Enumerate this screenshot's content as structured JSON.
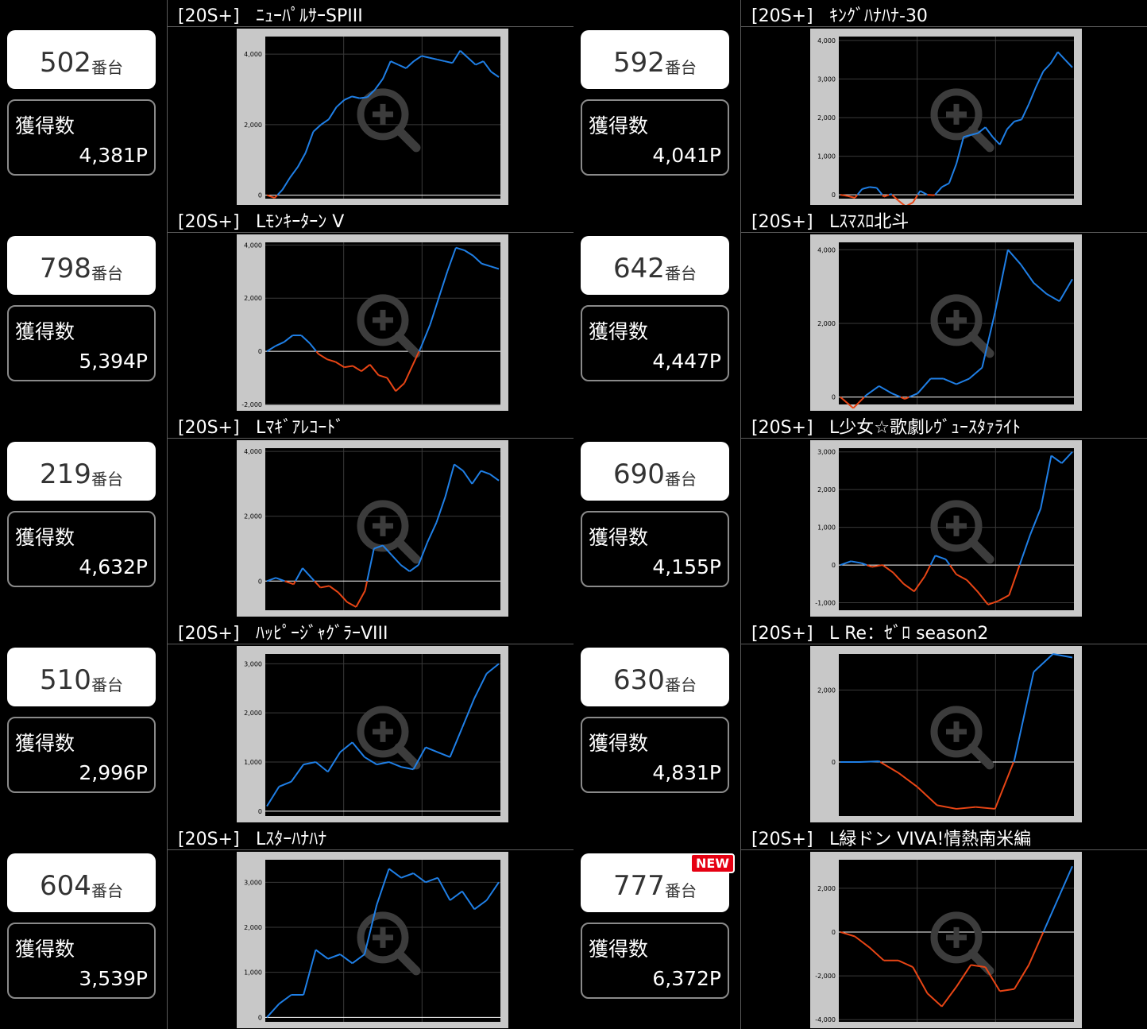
{
  "colors": {
    "positive": "#1f7fe6",
    "negative": "#e84515",
    "grid": "#3a3a3a",
    "zero": "#ffffff",
    "frame": "#c8c8c8"
  },
  "machines": [
    {
      "number": "502",
      "suffix": "番台",
      "gain_label": "獲得数",
      "gain_value": "4,381P",
      "tag": "[20S+]",
      "name": "ﾆｭｰﾊﾟﾙｻｰSPIII"
    },
    {
      "number": "592",
      "suffix": "番台",
      "gain_label": "獲得数",
      "gain_value": "4,041P",
      "tag": "[20S+]",
      "name": "ｷﾝｸﾞﾊﾅﾊﾅ-30"
    },
    {
      "number": "798",
      "suffix": "番台",
      "gain_label": "獲得数",
      "gain_value": "5,394P",
      "tag": "[20S+]",
      "name": "Lﾓﾝｷｰﾀｰﾝ V"
    },
    {
      "number": "642",
      "suffix": "番台",
      "gain_label": "獲得数",
      "gain_value": "4,447P",
      "tag": "[20S+]",
      "name": "Lｽﾏｽﾛ北斗"
    },
    {
      "number": "219",
      "suffix": "番台",
      "gain_label": "獲得数",
      "gain_value": "4,632P",
      "tag": "[20S+]",
      "name": "Lﾏｷﾞｱﾚｺｰﾄﾞ"
    },
    {
      "number": "690",
      "suffix": "番台",
      "gain_label": "獲得数",
      "gain_value": "4,155P",
      "tag": "[20S+]",
      "name": "L少女☆歌劇ﾚｳﾞｭｰｽﾀｧﾗｲﾄ"
    },
    {
      "number": "510",
      "suffix": "番台",
      "gain_label": "獲得数",
      "gain_value": "2,996P",
      "tag": "[20S+]",
      "name": "ﾊｯﾋﾟｰｼﾞｬｸﾞﾗｰVIII"
    },
    {
      "number": "630",
      "suffix": "番台",
      "gain_label": "獲得数",
      "gain_value": "4,831P",
      "tag": "[20S+]",
      "name": "L Re：ｾﾞﾛ season2"
    },
    {
      "number": "604",
      "suffix": "番台",
      "gain_label": "獲得数",
      "gain_value": "3,539P",
      "tag": "[20S+]",
      "name": "Lｽﾀｰﾊﾅﾊﾅ"
    },
    {
      "number": "777",
      "suffix": "番台",
      "gain_label": "獲得数",
      "gain_value": "6,372P",
      "tag": "[20S+]",
      "name": "L緑ドン VIVA!情熱南米編",
      "badge": "NEW"
    }
  ],
  "chart_data": [
    {
      "type": "line",
      "ylim": [
        -100,
        4500
      ],
      "yticks": [
        {
          "v": 0,
          "t": "0"
        },
        {
          "v": 2000,
          "t": "2,000"
        },
        {
          "v": 4000,
          "t": "4,000"
        }
      ],
      "y": [
        0,
        -80,
        150,
        500,
        800,
        1200,
        1800,
        2000,
        2150,
        2500,
        2700,
        2800,
        2750,
        2780,
        3000,
        3300,
        3800,
        3700,
        3600,
        3800,
        3950,
        3900,
        3850,
        3800,
        3750,
        4100,
        3900,
        3700,
        3800,
        3500,
        3350
      ]
    },
    {
      "type": "line",
      "ylim": [
        -100,
        4100
      ],
      "yticks": [
        {
          "v": 0,
          "t": "0"
        },
        {
          "v": 1000,
          "t": "1,000"
        },
        {
          "v": 2000,
          "t": "2,000"
        },
        {
          "v": 3000,
          "t": "3,000"
        },
        {
          "v": 4000,
          "t": "4,000"
        }
      ],
      "y": [
        0,
        -30,
        -80,
        150,
        200,
        180,
        -50,
        20,
        -150,
        -300,
        -200,
        100,
        0,
        -10,
        200,
        300,
        800,
        1500,
        1550,
        1600,
        1750,
        1500,
        1300,
        1700,
        1900,
        1950,
        2350,
        2800,
        3200,
        3400,
        3700,
        3500,
        3300
      ]
    },
    {
      "type": "line",
      "ylim": [
        -2000,
        4100
      ],
      "yticks": [
        {
          "v": -2000,
          "t": "-2,000"
        },
        {
          "v": 0,
          "t": "0"
        },
        {
          "v": 2000,
          "t": "2,000"
        },
        {
          "v": 4000,
          "t": "4,000"
        }
      ],
      "y": [
        0,
        200,
        350,
        600,
        600,
        300,
        -100,
        -300,
        -400,
        -600,
        -550,
        -750,
        -500,
        -900,
        -1000,
        -1500,
        -1200,
        -500,
        200,
        1000,
        2000,
        3000,
        3900,
        3800,
        3600,
        3300,
        3200,
        3100
      ]
    },
    {
      "type": "line",
      "ylim": [
        -200,
        4200
      ],
      "yticks": [
        {
          "v": 0,
          "t": "0"
        },
        {
          "v": 2000,
          "t": "2,000"
        },
        {
          "v": 4000,
          "t": "4,000"
        }
      ],
      "y": [
        0,
        -300,
        50,
        300,
        100,
        -50,
        100,
        500,
        500,
        350,
        500,
        800,
        2300,
        4000,
        3600,
        3100,
        2800,
        2600,
        3200
      ]
    },
    {
      "type": "line",
      "ylim": [
        -900,
        4100
      ],
      "yticks": [
        {
          "v": 0,
          "t": "0"
        },
        {
          "v": 2000,
          "t": "2,000"
        },
        {
          "v": 4000,
          "t": "4,000"
        }
      ],
      "y": [
        0,
        100,
        0,
        -100,
        400,
        100,
        -200,
        -150,
        -350,
        -650,
        -800,
        -300,
        1000,
        1100,
        800,
        500,
        300,
        500,
        1200,
        1800,
        2600,
        3600,
        3400,
        3000,
        3400,
        3300,
        3100
      ]
    },
    {
      "type": "line",
      "ylim": [
        -1200,
        3100
      ],
      "yticks": [
        {
          "v": -1000,
          "t": "-1,000"
        },
        {
          "v": 0,
          "t": "0"
        },
        {
          "v": 1000,
          "t": "1,000"
        },
        {
          "v": 2000,
          "t": "2,000"
        },
        {
          "v": 3000,
          "t": "3,000"
        }
      ],
      "y": [
        0,
        100,
        50,
        -50,
        0,
        -200,
        -500,
        -700,
        -300,
        250,
        150,
        -250,
        -400,
        -700,
        -1050,
        -950,
        -800,
        0,
        800,
        1500,
        2900,
        2700,
        3000
      ]
    },
    {
      "type": "line",
      "ylim": [
        -100,
        3200
      ],
      "yticks": [
        {
          "v": 0,
          "t": "0"
        },
        {
          "v": 1000,
          "t": "1,000"
        },
        {
          "v": 2000,
          "t": "2,000"
        },
        {
          "v": 3000,
          "t": "3,000"
        }
      ],
      "y": [
        100,
        500,
        600,
        950,
        1000,
        800,
        1200,
        1400,
        1100,
        950,
        1000,
        900,
        850,
        1300,
        1200,
        1100,
        1700,
        2300,
        2800,
        3000
      ]
    },
    {
      "type": "line",
      "ylim": [
        -1500,
        3000
      ],
      "yticks": [
        {
          "v": 0,
          "t": "0"
        },
        {
          "v": 2000,
          "t": "2,000"
        }
      ],
      "y": [
        0,
        0,
        20,
        -300,
        -700,
        -1200,
        -1300,
        -1250,
        -1300,
        50,
        2500,
        3000,
        2900
      ]
    },
    {
      "type": "line",
      "ylim": [
        -100,
        3500
      ],
      "yticks": [
        {
          "v": 0,
          "t": "0"
        },
        {
          "v": 1000,
          "t": "1,000"
        },
        {
          "v": 2000,
          "t": "2,000"
        },
        {
          "v": 3000,
          "t": "3,000"
        }
      ],
      "y": [
        0,
        300,
        500,
        500,
        1500,
        1300,
        1400,
        1200,
        1400,
        2500,
        3300,
        3100,
        3200,
        3000,
        3100,
        2600,
        2800,
        2400,
        2600,
        3000
      ]
    },
    {
      "type": "line",
      "ylim": [
        -4100,
        3300
      ],
      "yticks": [
        {
          "v": -4000,
          "t": "-4,000"
        },
        {
          "v": -2000,
          "t": "-2,000"
        },
        {
          "v": 0,
          "t": "0"
        },
        {
          "v": 2000,
          "t": "2,000"
        }
      ],
      "y": [
        0,
        -200,
        -700,
        -1300,
        -1300,
        -1600,
        -2800,
        -3400,
        -2500,
        -1500,
        -1600,
        -2700,
        -2600,
        -1500,
        0,
        1500,
        3000
      ]
    }
  ]
}
